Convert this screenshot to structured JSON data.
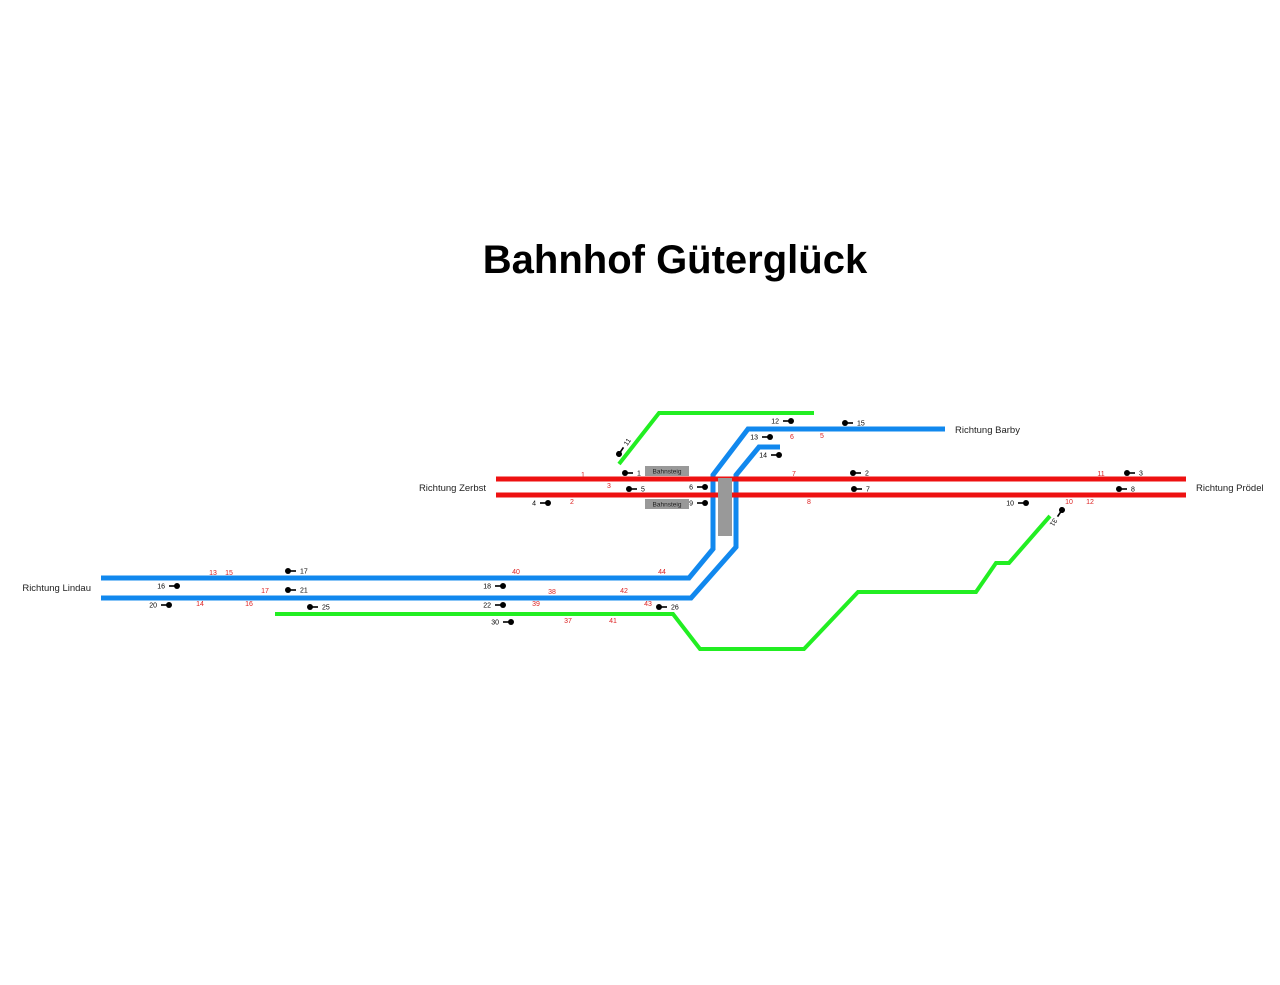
{
  "title": "Bahnhof Güterglück",
  "colors": {
    "red": "#ee1111",
    "blue": "#1188ee",
    "green": "#22ee22",
    "platform": "#999999",
    "signal": "#000000",
    "switch_label": "#dd2222"
  },
  "directions": {
    "zerbst": "Richtung Zerbst",
    "barby": "Richtung Barby",
    "prodel": "Richtung Prödel",
    "lindau": "Richtung Lindau"
  },
  "platforms": [
    "Bahnsteig",
    "Bahnsteig"
  ],
  "signals": [
    "1",
    "2",
    "3",
    "4",
    "5",
    "6",
    "7",
    "8",
    "9",
    "10",
    "11",
    "12",
    "13",
    "14",
    "15",
    "16",
    "17",
    "18",
    "20",
    "21",
    "22",
    "25",
    "26",
    "30",
    "31"
  ],
  "switches": [
    "1",
    "2",
    "3",
    "5",
    "6",
    "7",
    "8",
    "10",
    "11",
    "12",
    "13",
    "14",
    "15",
    "16",
    "17",
    "37",
    "38",
    "39",
    "40",
    "41",
    "42",
    "43",
    "44"
  ]
}
